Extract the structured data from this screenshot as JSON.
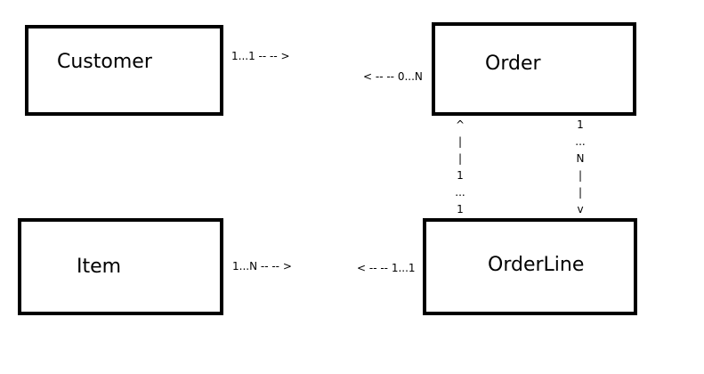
{
  "entities": {
    "customer": "Customer",
    "order": "Order",
    "item": "Item",
    "orderline": "OrderLine"
  },
  "relations": {
    "customer_to_order": "1...1 -- -- >",
    "order_from_customer": "< -- -- 0...N",
    "item_to_orderline": "1...N -- -- >",
    "orderline_from_item": "< -- -- 1...1",
    "orderline_to_order": [
      "^",
      "|",
      "|",
      "1",
      "...",
      "1"
    ],
    "order_to_orderline": [
      "1",
      "...",
      "N",
      "|",
      "|",
      "v"
    ]
  }
}
